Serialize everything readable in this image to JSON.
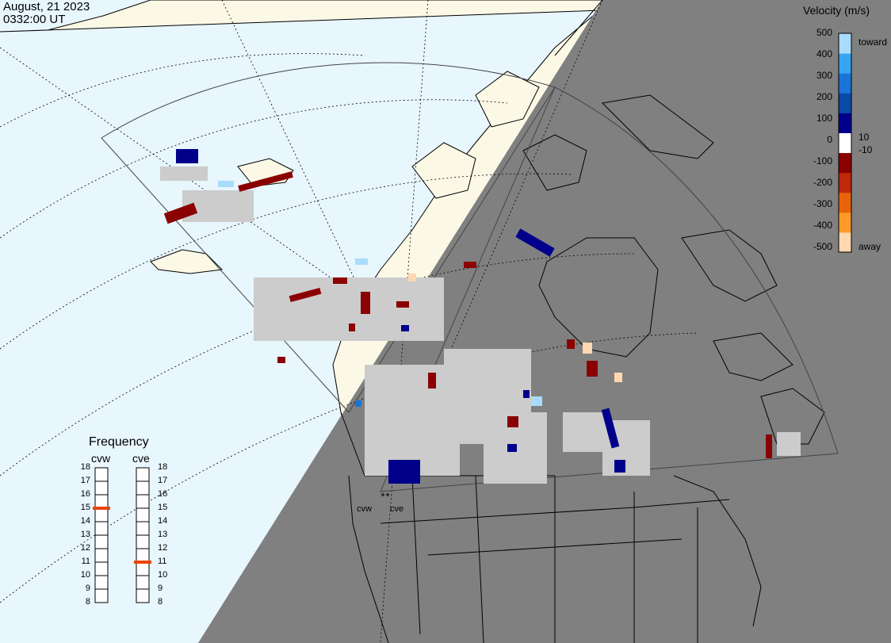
{
  "title": {
    "date": "August, 21 2023",
    "time": "0332:00 UT"
  },
  "colors": {
    "ocean": "#e8f6fe",
    "land": "#fbf9e6",
    "night": "#808080",
    "outline": "#000000",
    "ground_scatter": "#cccccc",
    "away_strong": "#8b0000",
    "toward_strong": "#00008b"
  },
  "colorbar": {
    "title": "Velocity (m/s)",
    "ticks": [
      "500",
      "400",
      "300",
      "200",
      "100",
      "0",
      "-100",
      "-200",
      "-300",
      "-400",
      "-500"
    ],
    "side_labels": {
      "toward": "toward",
      "pos_threshold": "10",
      "neg_threshold": "-10",
      "away": "away"
    },
    "gradient": [
      "#ffd8b0",
      "#ff9a2a",
      "#e8640a",
      "#c0280a",
      "#8b0000",
      "#ffffff",
      "#00008b",
      "#0a4aa8",
      "#1a74d8",
      "#36a6f2",
      "#a8dcfa"
    ]
  },
  "frequency": {
    "title": "Frequency",
    "radars": [
      {
        "name": "cvw",
        "value_mhz": 15
      },
      {
        "name": "cve",
        "value_mhz": 11
      }
    ],
    "scale": [
      "18",
      "17",
      "16",
      "15",
      "14",
      "13",
      "12",
      "11",
      "10",
      "9",
      "8"
    ]
  },
  "sites": [
    {
      "name": "cvw"
    },
    {
      "name": "cve"
    }
  ]
}
